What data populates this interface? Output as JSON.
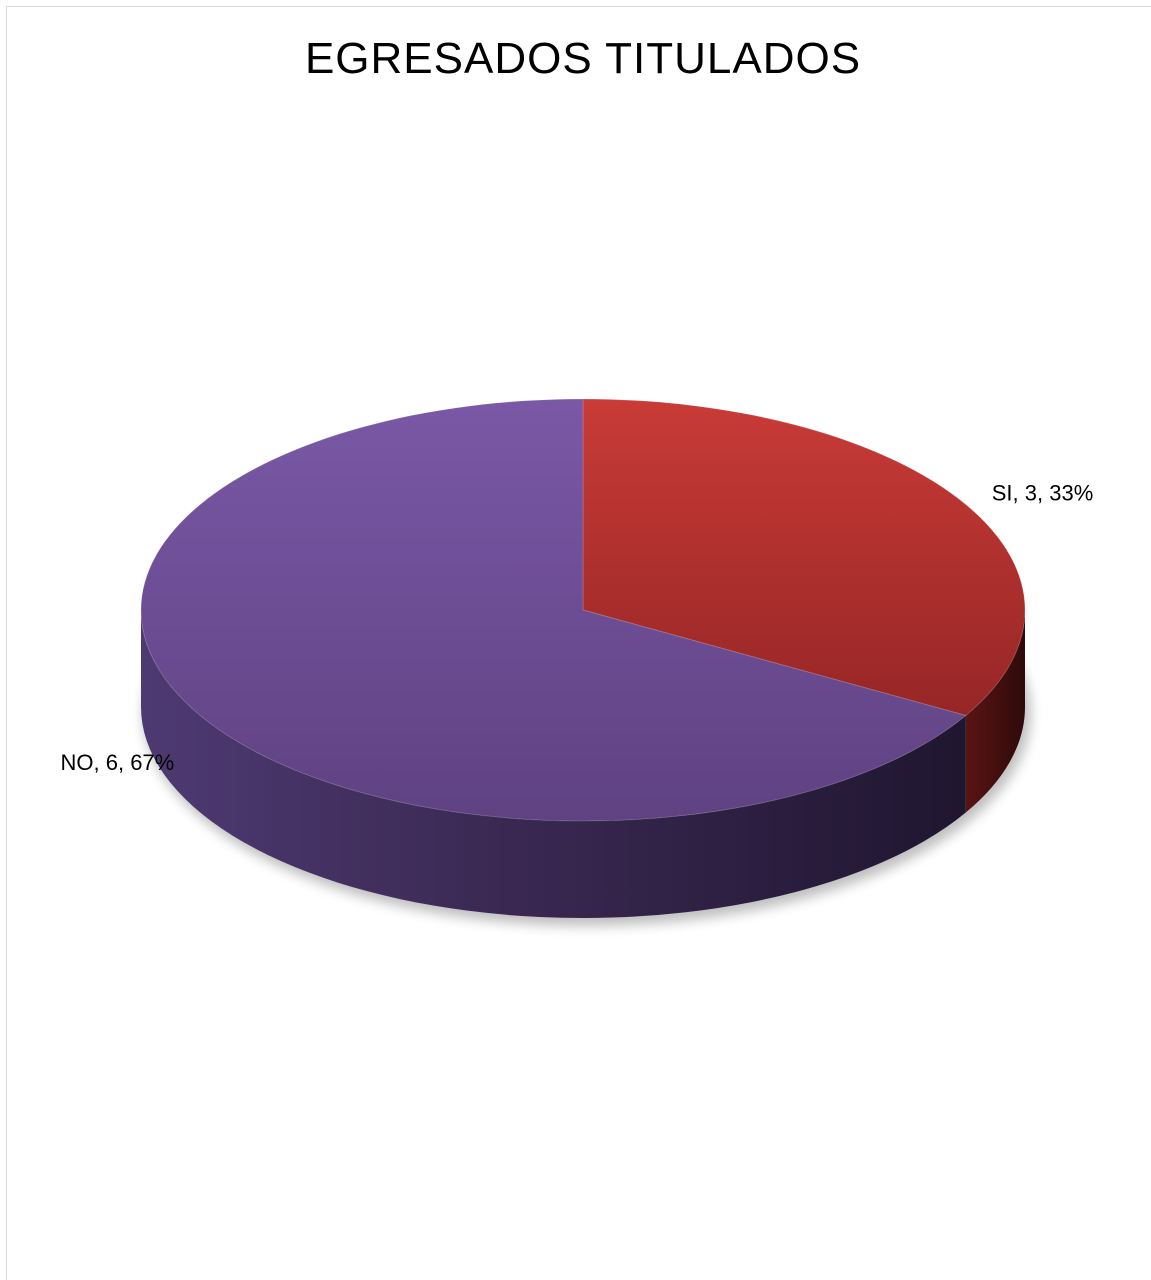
{
  "chart_data": {
    "type": "pie",
    "title": "EGRESADOS TITULADOS",
    "slices": [
      {
        "name": "SI",
        "value": 3,
        "percent": 33,
        "label": "SI, 3, 33%",
        "color": "#c0392f"
      },
      {
        "name": "NO",
        "value": 6,
        "percent": 67,
        "label": "NO, 6, 67%",
        "color": "#7553a0"
      }
    ],
    "style": "3d",
    "legend": "none"
  }
}
